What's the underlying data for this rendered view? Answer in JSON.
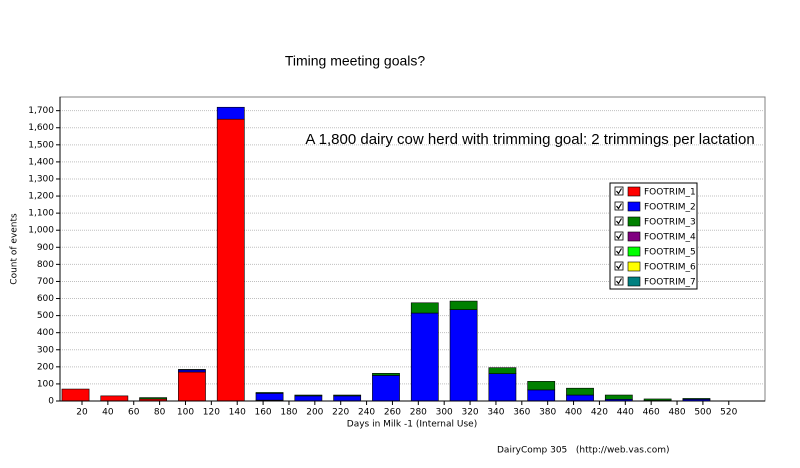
{
  "chart_data": {
    "type": "stacked_bar",
    "title": "Timing meeting goals?",
    "annotation": "A 1,800 dairy cow herd with trimming goal: 2 trimmings per lactation",
    "x_label": "Days in Milk -1 (Internal Use)",
    "y_label": "Count of events",
    "footer": "DairyComp 305   (http://web.vas.com)",
    "x": [
      15,
      45,
      75,
      105,
      135,
      165,
      195,
      225,
      255,
      285,
      315,
      345,
      375,
      405,
      435,
      465,
      495
    ],
    "series": [
      {
        "name": "FOOTRIM_1",
        "color": "#ff0000",
        "values": [
          70,
          30,
          12,
          170,
          1650,
          5,
          0,
          0,
          0,
          0,
          0,
          0,
          0,
          0,
          0,
          0,
          0
        ]
      },
      {
        "name": "FOOTRIM_2",
        "color": "#0000ff",
        "values": [
          0,
          0,
          0,
          12,
          70,
          40,
          30,
          30,
          150,
          515,
          535,
          160,
          65,
          35,
          10,
          3,
          10
        ]
      },
      {
        "name": "FOOTRIM_3",
        "color": "#008000",
        "values": [
          0,
          0,
          8,
          3,
          0,
          5,
          5,
          5,
          12,
          60,
          50,
          35,
          50,
          40,
          25,
          9,
          5
        ]
      },
      {
        "name": "FOOTRIM_4",
        "color": "#800080",
        "values": [
          0,
          0,
          0,
          0,
          0,
          0,
          0,
          0,
          0,
          0,
          0,
          0,
          0,
          0,
          0,
          0,
          0
        ]
      },
      {
        "name": "FOOTRIM_5",
        "color": "#00ff00",
        "values": [
          0,
          0,
          0,
          0,
          0,
          0,
          0,
          0,
          0,
          0,
          0,
          0,
          0,
          0,
          0,
          0,
          0
        ]
      },
      {
        "name": "FOOTRIM_6",
        "color": "#ffff00",
        "values": [
          0,
          0,
          0,
          0,
          0,
          0,
          0,
          0,
          0,
          0,
          0,
          0,
          0,
          0,
          0,
          0,
          0
        ]
      },
      {
        "name": "FOOTRIM_7",
        "color": "#008080",
        "values": [
          0,
          0,
          0,
          0,
          0,
          0,
          0,
          0,
          0,
          0,
          0,
          0,
          0,
          0,
          0,
          0,
          0
        ]
      }
    ],
    "bar_width": 21,
    "xlim": [
      3,
      548
    ],
    "xticks": [
      20,
      40,
      60,
      80,
      100,
      120,
      140,
      160,
      180,
      200,
      220,
      240,
      260,
      280,
      300,
      320,
      340,
      360,
      380,
      400,
      420,
      440,
      460,
      480,
      500,
      520
    ],
    "ylim": [
      0,
      1780
    ],
    "yticks": [
      0,
      100,
      200,
      300,
      400,
      500,
      600,
      700,
      800,
      900,
      {
        "value": 1000,
        "label": "1,000"
      },
      {
        "value": 1100,
        "label": "1,100"
      },
      {
        "value": 1200,
        "label": "1,200"
      },
      {
        "value": 1300,
        "label": "1,300"
      },
      {
        "value": 1400,
        "label": "1,400"
      },
      {
        "value": 1500,
        "label": "1,500"
      },
      {
        "value": 1600,
        "label": "1,600"
      },
      {
        "value": 1700,
        "label": "1,700"
      }
    ],
    "grid": true
  }
}
